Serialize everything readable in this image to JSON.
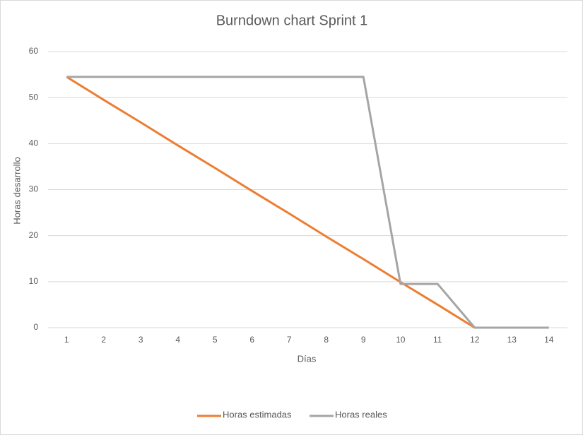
{
  "chart_data": {
    "type": "line",
    "title": "Burndown chart Sprint 1",
    "x_label": "Días",
    "y_label": "Horas desarrollo",
    "categories": [
      "1",
      "2",
      "3",
      "4",
      "5",
      "6",
      "7",
      "8",
      "9",
      "10",
      "11",
      "12",
      "13",
      "14"
    ],
    "series": [
      {
        "name": "Horas estimadas",
        "color": "#ed7d31",
        "values": [
          54.5,
          49.5,
          44.6,
          39.6,
          34.7,
          29.7,
          24.8,
          19.8,
          14.9,
          9.9,
          5,
          0,
          null,
          null
        ]
      },
      {
        "name": "Horas reales",
        "color": "#a5a5a5",
        "values": [
          54.5,
          54.5,
          54.5,
          54.5,
          54.5,
          54.5,
          54.5,
          54.5,
          54.5,
          9.5,
          9.5,
          0,
          0,
          0
        ]
      }
    ],
    "ylim": [
      0,
      60
    ],
    "yticks": [
      0,
      10,
      20,
      30,
      40,
      50,
      60
    ],
    "grid": true,
    "legend": "bottom"
  }
}
